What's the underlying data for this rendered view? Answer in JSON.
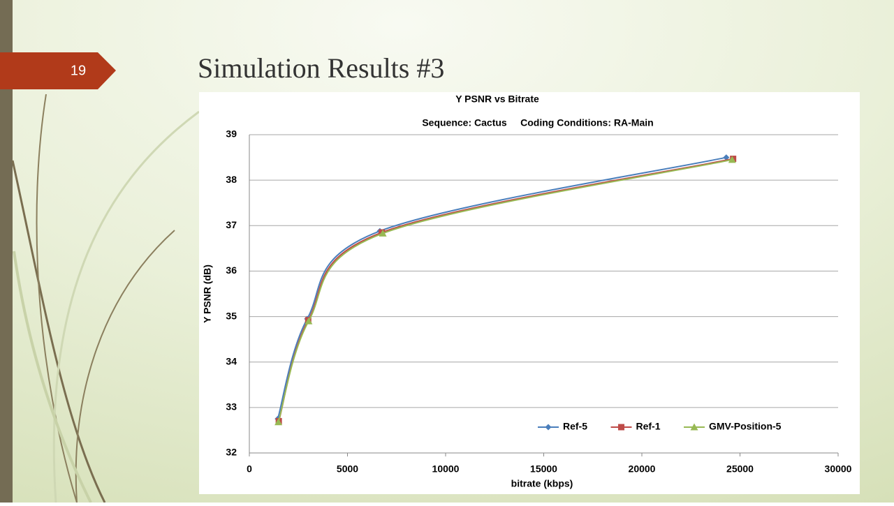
{
  "slide_number": "19",
  "title": "Simulation Results #3",
  "chart_data": {
    "type": "line",
    "title": "Y PSNR vs Bitrate",
    "subtitle": "Sequence: Cactus     Coding Conditions: RA-Main",
    "x_label": "bitrate (kbps)",
    "y_label": "Y PSNR (dB)",
    "xlim": [
      0,
      30000
    ],
    "xticks": [
      0,
      5000,
      10000,
      15000,
      20000,
      25000,
      30000
    ],
    "ylim": [
      32,
      39
    ],
    "yticks": [
      32,
      33,
      34,
      35,
      36,
      37,
      38,
      39
    ],
    "grid": true,
    "legend": "lower right",
    "series": [
      {
        "name": "Ref-5",
        "color": "#4a7ebb",
        "marker": "diamond",
        "x": [
          1450,
          2950,
          6650,
          24300
        ],
        "values": [
          32.75,
          34.95,
          36.88,
          38.5
        ]
      },
      {
        "name": "Ref-1",
        "color": "#be4b48",
        "marker": "square",
        "x": [
          1500,
          3000,
          6750,
          24650
        ],
        "values": [
          32.7,
          34.92,
          36.85,
          38.47
        ]
      },
      {
        "name": "GMV-Position-5",
        "color": "#98b954",
        "marker": "triangle",
        "x": [
          1480,
          3020,
          6800,
          24600
        ],
        "values": [
          32.68,
          34.9,
          36.83,
          38.45
        ]
      }
    ]
  }
}
